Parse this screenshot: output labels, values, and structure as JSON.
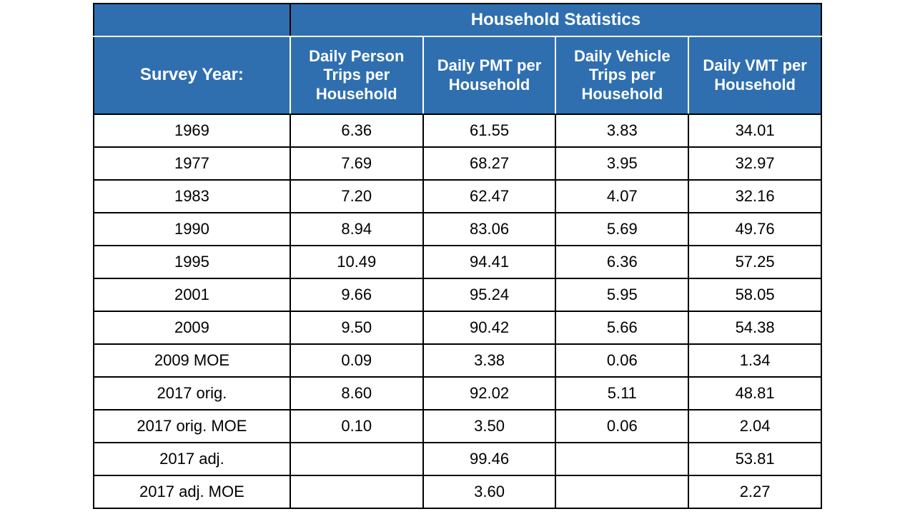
{
  "table": {
    "type": "table",
    "header_bg_color": "#2f6fb0",
    "header_text_color": "#ffffff",
    "border_color": "#000000",
    "inner_header_border_color": "#ffffff",
    "cell_bg_color": "#ffffff",
    "cell_text_color": "#000000",
    "header_fontsize": 22,
    "cell_fontsize": 22,
    "group_title": "Household Statistics",
    "row_header_label": "Survey Year:",
    "columns": [
      "Daily Person Trips per Household",
      "Daily PMT per Household",
      "Daily Vehicle Trips per Household",
      "Daily VMT per Household"
    ],
    "rows": [
      {
        "year": "1969",
        "cells": [
          "6.36",
          "61.55",
          "3.83",
          "34.01"
        ]
      },
      {
        "year": "1977",
        "cells": [
          "7.69",
          "68.27",
          "3.95",
          "32.97"
        ]
      },
      {
        "year": "1983",
        "cells": [
          "7.20",
          "62.47",
          "4.07",
          "32.16"
        ]
      },
      {
        "year": "1990",
        "cells": [
          "8.94",
          "83.06",
          "5.69",
          "49.76"
        ]
      },
      {
        "year": "1995",
        "cells": [
          "10.49",
          "94.41",
          "6.36",
          "57.25"
        ]
      },
      {
        "year": "2001",
        "cells": [
          "9.66",
          "95.24",
          "5.95",
          "58.05"
        ]
      },
      {
        "year": "2009",
        "cells": [
          "9.50",
          "90.42",
          "5.66",
          "54.38"
        ]
      },
      {
        "year": "2009 MOE",
        "cells": [
          "0.09",
          "3.38",
          "0.06",
          "1.34"
        ]
      },
      {
        "year": "2017 orig.",
        "cells": [
          "8.60",
          "92.02",
          "5.11",
          "48.81"
        ]
      },
      {
        "year": "2017 orig. MOE",
        "cells": [
          "0.10",
          "3.50",
          "0.06",
          "2.04"
        ]
      },
      {
        "year": "2017 adj.",
        "cells": [
          "",
          "99.46",
          "",
          "53.81"
        ]
      },
      {
        "year": "2017 adj. MOE",
        "cells": [
          "",
          "3.60",
          "",
          "2.27"
        ]
      }
    ],
    "column_widths_pct": [
      27,
      18.25,
      18.25,
      18.25,
      18.25
    ]
  }
}
